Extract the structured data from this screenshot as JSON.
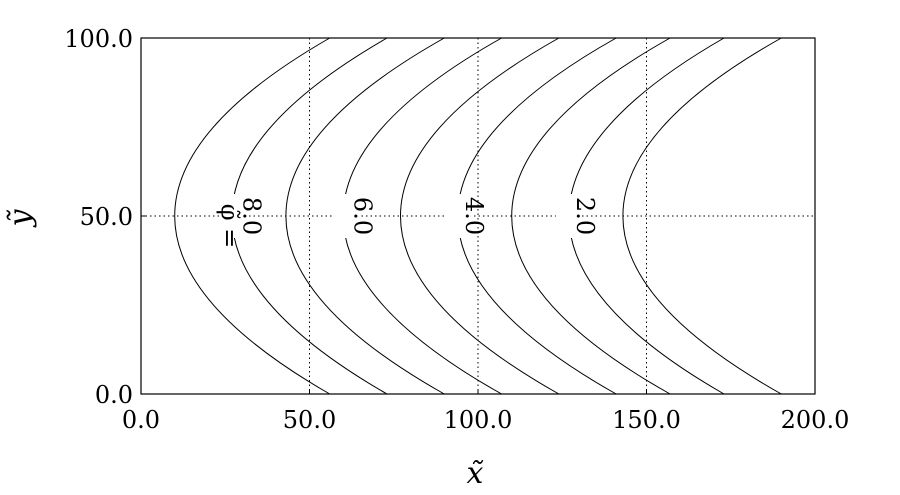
{
  "chart_data": {
    "type": "line",
    "title": "",
    "xlabel": "x̃",
    "ylabel": "ỹ",
    "xlim": [
      0,
      200
    ],
    "ylim": [
      0,
      100
    ],
    "x_ticks": [
      "0.0",
      "50.0",
      "100.0",
      "150.0",
      "200.0"
    ],
    "y_ticks": [
      "0.0",
      "50.0",
      "100.0"
    ],
    "grid": "dotted",
    "curve_label_prefix": "φ̃ =",
    "contour_labels": [
      "8.0",
      "6.0",
      "4.0",
      "2.0"
    ],
    "series": [
      {
        "vertex": [
          10,
          50
        ],
        "ends": [
          56,
          0,
          56,
          100
        ]
      },
      {
        "vertex": [
          27,
          50
        ],
        "ends": [
          73,
          0,
          73,
          100
        ]
      },
      {
        "vertex": [
          43,
          50
        ],
        "ends": [
          90,
          0,
          90,
          100
        ]
      },
      {
        "vertex": [
          60,
          50
        ],
        "ends": [
          107,
          0,
          107,
          100
        ]
      },
      {
        "vertex": [
          77,
          50
        ],
        "ends": [
          124,
          0,
          124,
          100
        ]
      },
      {
        "vertex": [
          94,
          50
        ],
        "ends": [
          141,
          0,
          141,
          100
        ]
      },
      {
        "vertex": [
          110,
          50
        ],
        "ends": [
          157,
          0,
          157,
          100
        ]
      },
      {
        "vertex": [
          127,
          50
        ],
        "ends": [
          173,
          0,
          173,
          100
        ]
      },
      {
        "vertex": [
          143,
          50
        ],
        "ends": [
          190,
          0,
          190,
          100
        ]
      }
    ],
    "labels_at": [
      {
        "text_index": 0,
        "x": 28,
        "y": 50
      },
      {
        "text_index": 1,
        "x": 61,
        "y": 50
      },
      {
        "text_index": 2,
        "x": 94,
        "y": 50
      },
      {
        "text_index": 3,
        "x": 127,
        "y": 50
      }
    ]
  }
}
